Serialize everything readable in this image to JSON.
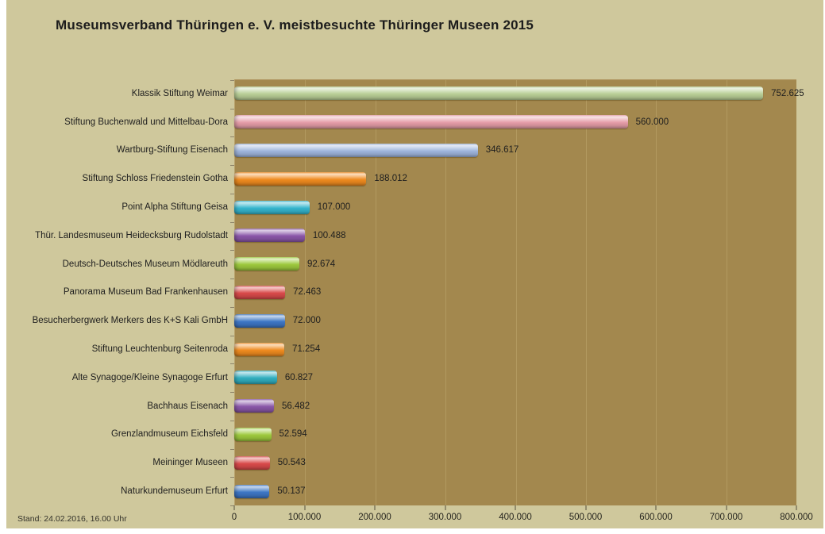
{
  "header": {
    "title": "Museumsverband Thüringen e. V. meistbesuchte Thüringer Museen 2015"
  },
  "footer": {
    "stand": "Stand: 24.02.2016, 16.00 Uhr"
  },
  "colors": {
    "canvas_bg": "#cfc89c",
    "plot_bg": "#a3884e",
    "gridline": "#b2995f",
    "text": "#1e1e1e"
  },
  "chart_data": {
    "type": "bar",
    "orientation": "horizontal",
    "title": "Museumsverband Thüringen e. V. meistbesuchte Thüringer Museen 2015",
    "xlabel": "",
    "ylabel": "",
    "xlim": [
      0,
      800000
    ],
    "grid": "vertical",
    "legend_position": "none",
    "x_tick_labels": [
      "0",
      "100.000",
      "200.000",
      "300.000",
      "400.000",
      "500.000",
      "600.000",
      "700.000",
      "800.000"
    ],
    "x_tick_values": [
      0,
      100000,
      200000,
      300000,
      400000,
      500000,
      600000,
      700000,
      800000
    ],
    "categories": [
      "Klassik Stiftung Weimar",
      "Stiftung Buchenwald und Mittelbau-Dora",
      "Wartburg-Stiftung Eisenach",
      "Stiftung Schloss Friedenstein Gotha",
      "Point Alpha Stiftung Geisa",
      "Thür. Landesmuseum Heidecksburg Rudolstadt",
      "Deutsch-Deutsches Museum Mödlareuth",
      "Panorama Museum Bad Frankenhausen",
      "Besucherbergwerk Merkers des K+S Kali GmbH",
      "Stiftung Leuchtenburg Seitenroda",
      "Alte Synagoge/Kleine Synagoge Erfurt",
      "Bachhaus Eisenach",
      "Grenzlandmuseum Eichsfeld",
      "Meininger Museen",
      "Naturkundemuseum Erfurt"
    ],
    "values": [
      752625,
      560000,
      346617,
      188012,
      107000,
      100488,
      92674,
      72463,
      72000,
      71254,
      60827,
      56482,
      52594,
      50543,
      50137
    ],
    "value_labels": [
      "752.625",
      "560.000",
      "346.617",
      "188.012",
      "107.000",
      "100.488",
      "92.674",
      "72.463",
      "72.000",
      "71.254",
      "60.827",
      "56.482",
      "52.594",
      "50.543",
      "50.137"
    ],
    "bar_colors": [
      "#b9cf96",
      "#e59da8",
      "#9fb5dc",
      "#ef8b1f",
      "#35b5cd",
      "#8a57a8",
      "#9dc93d",
      "#d94a4a",
      "#3d76c5",
      "#ef8b1f",
      "#31aebf",
      "#8a57a8",
      "#9dc93d",
      "#d94a4a",
      "#3d76c5"
    ]
  }
}
